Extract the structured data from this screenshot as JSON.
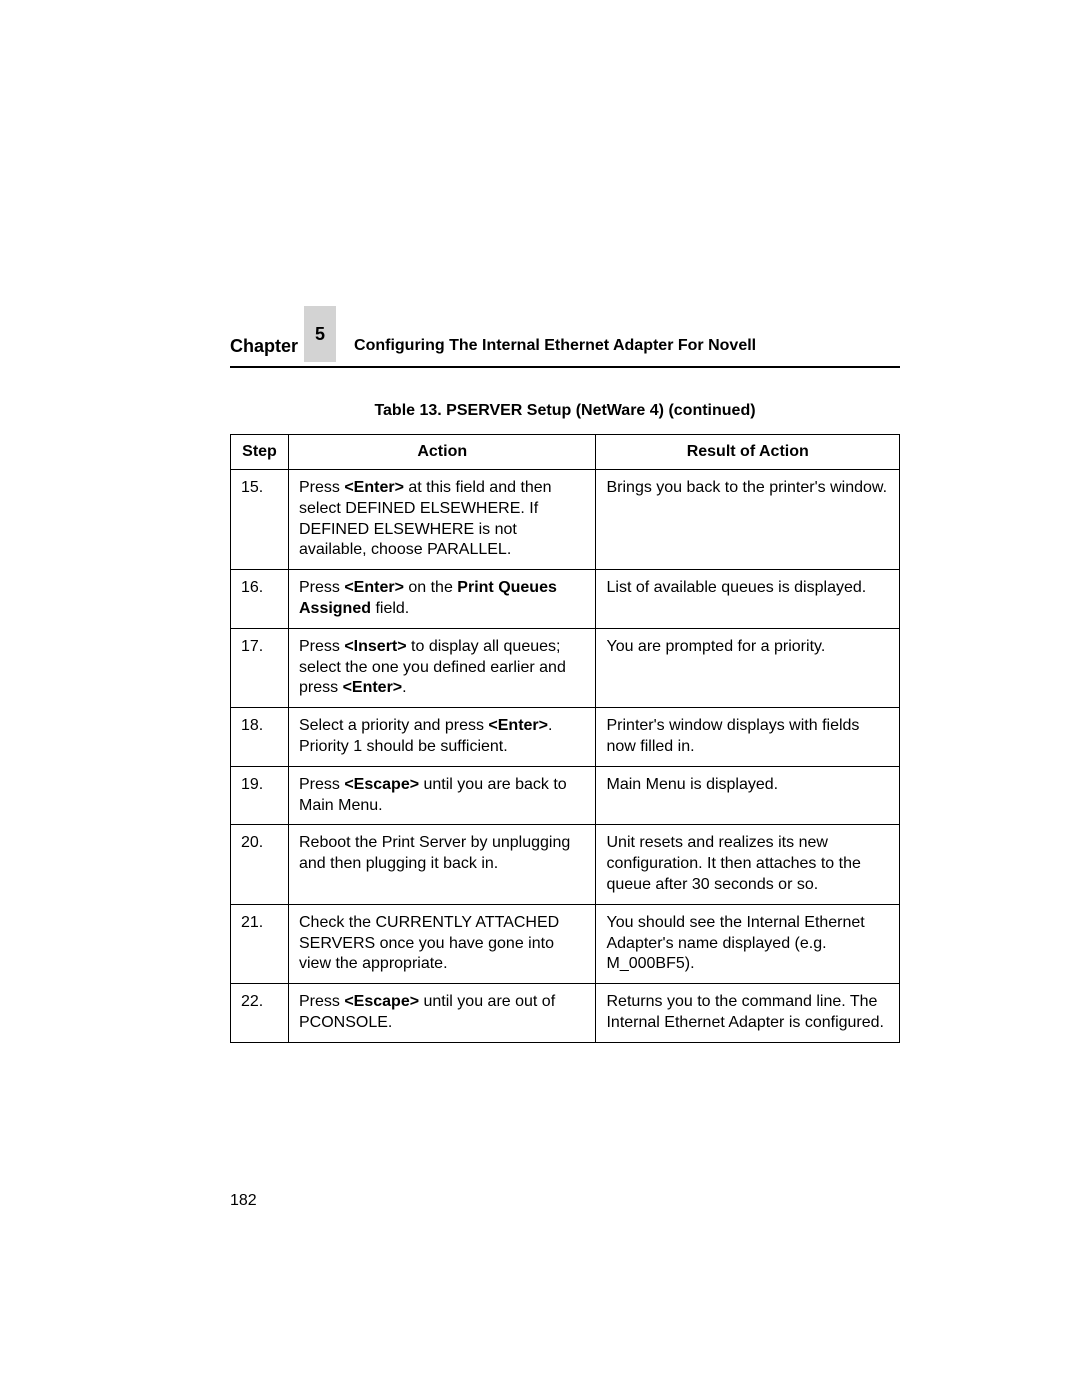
{
  "header": {
    "chapter_word": "Chapter",
    "chapter_number": "5",
    "chapter_title": "Configuring The Internal Ethernet Adapter For Novell"
  },
  "table": {
    "caption": "Table 13. PSERVER Setup (NetWare 4) (continued)",
    "columns": [
      "Step",
      "Action",
      "Result of Action"
    ],
    "rows": [
      {
        "step": "15.",
        "action_html": "Press <b>&lt;Enter&gt;</b> at this field and then select DEFINED ELSEWHERE. If DEFINED ELSEWHERE is not available, choose PARALLEL.",
        "result_html": "Brings you back to the printer's window."
      },
      {
        "step": "16.",
        "action_html": "Press <b>&lt;Enter&gt;</b> on the <b>Print Queues Assigned</b> field.",
        "result_html": "List of available queues is displayed."
      },
      {
        "step": "17.",
        "action_html": "Press <b>&lt;Insert&gt;</b> to display all queues; select the one you defined earlier and press <b>&lt;Enter&gt;</b>.",
        "result_html": "You are prompted for a priority."
      },
      {
        "step": "18.",
        "action_html": "Select a priority and press <b>&lt;Enter&gt;</b>. Priority 1 should be sufficient.",
        "result_html": "Printer's window displays with fields now filled in."
      },
      {
        "step": "19.",
        "action_html": "Press <b>&lt;Escape&gt;</b> until you are back to Main Menu.",
        "result_html": "Main Menu is displayed."
      },
      {
        "step": "20.",
        "action_html": "Reboot the Print Server by unplugging and then plugging it back in.",
        "result_html": "Unit resets and realizes its new configuration. It then attaches to the queue after 30 seconds or so."
      },
      {
        "step": "21.",
        "action_html": "Check the CURRENTLY ATTACHED SERVERS once you have gone into view the appropriate.",
        "result_html": "You should see the Internal Ethernet Adapter's name displayed (e.g. M_000BF5)."
      },
      {
        "step": "22.",
        "action_html": "Press <b>&lt;Escape&gt;</b> until you are out of PCONSOLE.",
        "result_html": "Returns you to the command line. The Internal Ethernet Adapter is configured."
      }
    ]
  },
  "page_number": "182",
  "colors": {
    "background": "#ffffff",
    "text": "#000000",
    "chapter_box_bg": "#d3d3d3",
    "border": "#000000"
  },
  "typography": {
    "base_fontsize": 16,
    "header_fontsize": 18,
    "font_family": "Arial, Helvetica, sans-serif"
  }
}
